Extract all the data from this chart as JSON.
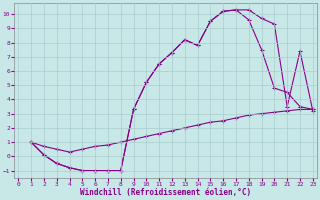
{
  "background_color": "#c8e8e8",
  "grid_color": "#aacccc",
  "line_color": "#880088",
  "xlabel": "Windchill (Refroidissement éolien,°C)",
  "xlim": [
    -0.3,
    23.3
  ],
  "ylim": [
    -1.5,
    10.8
  ],
  "xticks": [
    0,
    1,
    2,
    3,
    4,
    5,
    6,
    7,
    8,
    9,
    10,
    11,
    12,
    13,
    14,
    15,
    16,
    17,
    18,
    19,
    20,
    21,
    22,
    23
  ],
  "yticks": [
    -1,
    0,
    1,
    2,
    3,
    4,
    5,
    6,
    7,
    8,
    9,
    10
  ],
  "curve1_x": [
    1,
    2,
    3,
    4,
    5,
    6,
    7,
    8,
    9,
    10,
    11,
    12,
    13,
    14,
    15,
    16,
    17,
    18,
    19,
    20,
    21,
    22,
    23
  ],
  "curve1_y": [
    1.0,
    0.1,
    -0.5,
    -0.8,
    -1.0,
    -1.0,
    -1.0,
    -1.0,
    3.3,
    5.2,
    6.5,
    7.3,
    8.2,
    7.8,
    9.5,
    10.2,
    10.3,
    10.3,
    9.7,
    9.3,
    3.5,
    7.4,
    3.2
  ],
  "curve2_x": [
    1,
    2,
    3,
    4,
    5,
    6,
    7,
    8,
    9,
    10,
    11,
    12,
    13,
    14,
    15,
    16,
    17,
    18,
    19,
    20,
    21,
    22,
    23
  ],
  "curve2_y": [
    1.0,
    0.1,
    -0.5,
    -0.8,
    -1.0,
    -1.0,
    -1.0,
    -1.0,
    3.3,
    5.2,
    6.5,
    7.3,
    8.2,
    7.8,
    9.5,
    10.2,
    10.3,
    9.6,
    7.5,
    4.8,
    4.5,
    3.5,
    3.3
  ],
  "curve3_x": [
    1,
    2,
    3,
    4,
    5,
    6,
    7,
    8,
    9,
    10,
    11,
    12,
    13,
    14,
    15,
    16,
    17,
    18,
    19,
    20,
    21,
    22,
    23
  ],
  "curve3_y": [
    1.0,
    0.7,
    0.5,
    0.3,
    0.5,
    0.7,
    0.8,
    1.0,
    1.2,
    1.4,
    1.6,
    1.8,
    2.0,
    2.2,
    2.4,
    2.5,
    2.7,
    2.9,
    3.0,
    3.1,
    3.2,
    3.3,
    3.3
  ]
}
